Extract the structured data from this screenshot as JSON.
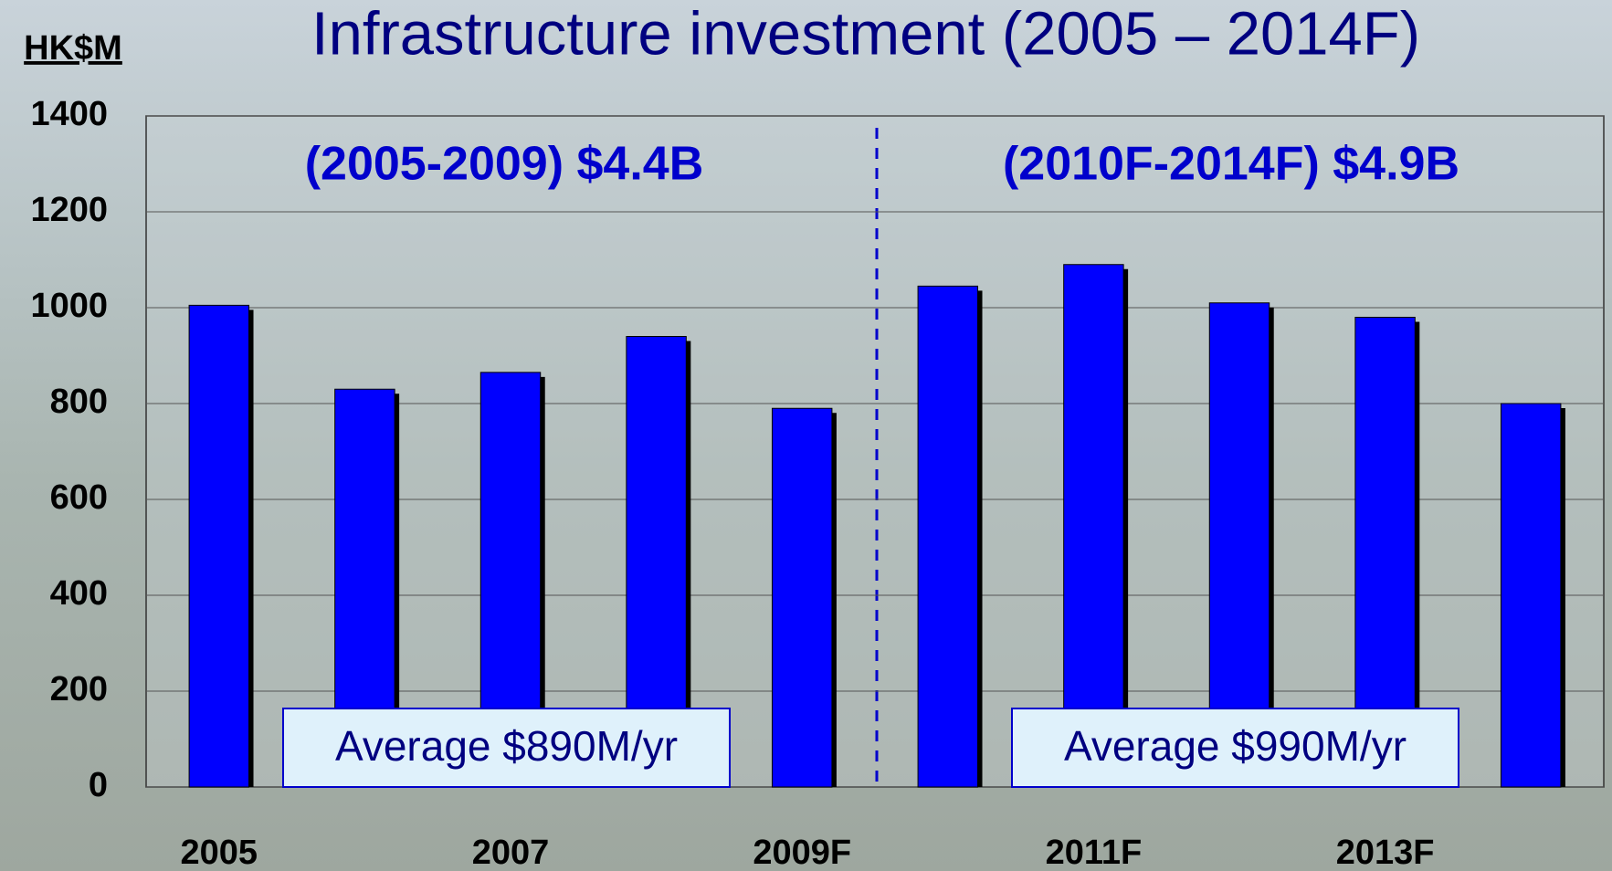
{
  "chart_data": {
    "type": "bar",
    "title": "Infrastructure investment  (2005 – 2014F)",
    "y_label": "HK$M",
    "categories": [
      "2005",
      null,
      "2007",
      null,
      "2009F",
      null,
      "2011F",
      null,
      "2013F",
      null
    ],
    "values": [
      1005,
      830,
      865,
      940,
      790,
      1045,
      1090,
      1010,
      980,
      800
    ],
    "color": "#0000ff",
    "ylim": [
      0,
      1400
    ],
    "yticks": [
      0,
      200,
      400,
      600,
      800,
      1000,
      1200,
      1400
    ],
    "grid": true,
    "annotations": [
      "(2005-2009) $4.4B",
      "(2010F-2014F) $4.9B",
      "Average $890M/yr",
      "Average $990M/yr"
    ]
  }
}
